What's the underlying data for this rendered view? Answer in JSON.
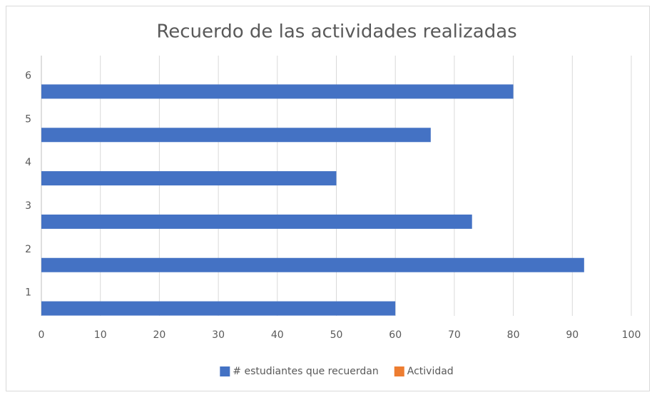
{
  "chart_data": {
    "type": "barh",
    "title": "Recuerdo de las actividades realizadas",
    "categories": [
      "1",
      "2",
      "3",
      "4",
      "5",
      "6"
    ],
    "series": [
      {
        "name": "# estudiantes que recuerdan",
        "color": "#4472c4",
        "values": [
          60,
          92,
          73,
          50,
          66,
          80
        ]
      },
      {
        "name": "Actividad",
        "color": "#ed7d31",
        "values": [
          null,
          null,
          null,
          null,
          null,
          null
        ]
      }
    ],
    "xlim": [
      0,
      100
    ],
    "xticks": [
      0,
      10,
      20,
      30,
      40,
      50,
      60,
      70,
      80,
      90,
      100
    ],
    "grid": true,
    "legend": "bottom"
  }
}
